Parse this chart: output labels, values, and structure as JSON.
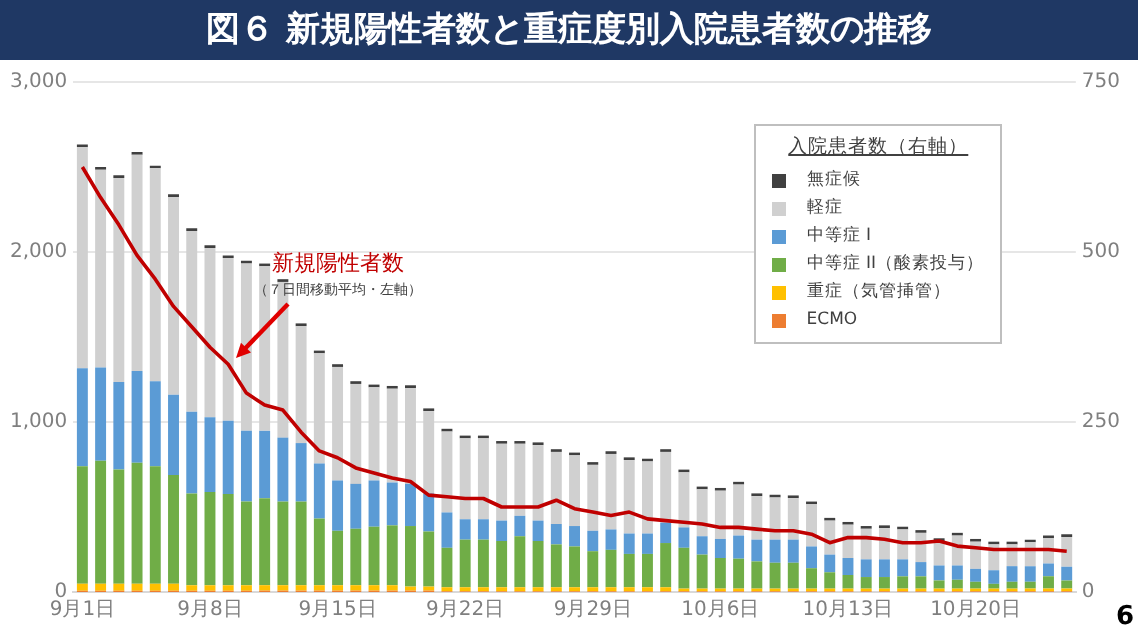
{
  "chart_data": {
    "type": "bar",
    "title": "図６ 新規陽性者数と重症度別入院患者数の推移",
    "categories": [
      "9月1日",
      null,
      null,
      null,
      null,
      null,
      null,
      "9月8日",
      null,
      null,
      null,
      null,
      null,
      null,
      "9月15日",
      null,
      null,
      null,
      null,
      null,
      null,
      "9月22日",
      null,
      null,
      null,
      null,
      null,
      null,
      "9月29日",
      null,
      null,
      null,
      null,
      null,
      null,
      "10月6日",
      null,
      null,
      null,
      null,
      null,
      null,
      "10月13日",
      null,
      null,
      null,
      null,
      null,
      null,
      "10月20日",
      null,
      null,
      null,
      null,
      null
    ],
    "stacked": true,
    "legend": "top right",
    "legend_title": "入院患者数（右軸）",
    "grid": "y",
    "ylim": [
      0,
      3000
    ],
    "yticks": [
      0,
      {
        "value": 1000,
        "label": "1,000"
      },
      {
        "value": 2000,
        "label": "2,000"
      },
      {
        "value": 3000,
        "label": "3,000"
      }
    ],
    "y2lim": [
      0,
      750
    ],
    "y2ticks": [
      0,
      250,
      500,
      750
    ],
    "annotations": [
      "（７日間移動平均・左軸）",
      "6"
    ],
    "series": [
      {
        "name": "ECMO",
        "color": "#ed7d31",
        "axis": "y2",
        "values": [
          2,
          2,
          2,
          2,
          2,
          2,
          2,
          2,
          2,
          2,
          2,
          2,
          2,
          2,
          2,
          2,
          2,
          2,
          2,
          2,
          1,
          1,
          1,
          1,
          1,
          1,
          1,
          1,
          1,
          1,
          1,
          1,
          1,
          1,
          1,
          1,
          1,
          1,
          1,
          1,
          1,
          1,
          1,
          1,
          1,
          1,
          1,
          1,
          1,
          1,
          1,
          1,
          1,
          1,
          1
        ]
      },
      {
        "name": "重症（気管挿管）",
        "color": "#ffc000",
        "axis": "y2",
        "values": [
          10,
          10,
          10,
          10,
          10,
          10,
          8,
          8,
          8,
          8,
          8,
          8,
          8,
          8,
          8,
          8,
          8,
          8,
          6,
          6,
          6,
          6,
          6,
          6,
          6,
          6,
          6,
          6,
          6,
          6,
          6,
          6,
          6,
          4,
          4,
          4,
          4,
          4,
          4,
          4,
          4,
          4,
          4,
          4,
          4,
          4,
          4,
          4,
          4,
          4,
          4,
          4,
          4,
          4,
          4
        ]
      },
      {
        "name": "中等症 II（酸素投与）",
        "color": "#70ad47",
        "axis": "y2",
        "values": [
          173,
          181,
          168,
          178,
          173,
          160,
          135,
          137,
          134,
          123,
          128,
          123,
          123,
          98,
          80,
          83,
          86,
          88,
          89,
          81,
          58,
          70,
          70,
          68,
          75,
          68,
          63,
          60,
          53,
          55,
          49,
          49,
          65,
          60,
          50,
          45,
          44,
          40,
          38,
          38,
          30,
          24,
          20,
          17,
          17,
          18,
          18,
          12,
          13,
          10,
          7,
          10,
          10,
          18,
          12
        ]
      },
      {
        "name": "中等症 I",
        "color": "#5b9bd5",
        "axis": "y2",
        "values": [
          144,
          137,
          129,
          135,
          125,
          118,
          120,
          110,
          108,
          104,
          99,
          94,
          86,
          81,
          74,
          66,
          68,
          63,
          62,
          56,
          52,
          30,
          30,
          30,
          30,
          30,
          30,
          30,
          30,
          30,
          30,
          30,
          30,
          30,
          27,
          28,
          34,
          32,
          34,
          34,
          32,
          26,
          25,
          26,
          26,
          25,
          21,
          22,
          21,
          19,
          20,
          23,
          23,
          19,
          20
        ]
      },
      {
        "name": "軽症",
        "color": "#d0d0d0",
        "axis": "y2",
        "values": [
          325,
          291,
          300,
          318,
          313,
          291,
          266,
          249,
          239,
          246,
          242,
          229,
          172,
          162,
          167,
          147,
          137,
          138,
          141,
          121,
          119,
          119,
          119,
          113,
          106,
          111,
          106,
          104,
          97,
          111,
          108,
          106,
          104,
          81,
          69,
          71,
          75,
          64,
          62,
          61,
          62,
          50,
          49,
          45,
          46,
          44,
          43,
          36,
          44,
          40,
          38,
          32,
          35,
          37,
          44
        ]
      },
      {
        "name": "無症候",
        "color": "#404040",
        "axis": "y2",
        "values": [
          4,
          4,
          4,
          4,
          4,
          4,
          4,
          4,
          4,
          4,
          4,
          4,
          4,
          4,
          4,
          4,
          4,
          4,
          4,
          4,
          4,
          4,
          4,
          4,
          4,
          4,
          4,
          4,
          4,
          4,
          4,
          4,
          4,
          4,
          4,
          4,
          4,
          4,
          4,
          4,
          4,
          4,
          4,
          4,
          4,
          4,
          4,
          4,
          4,
          4,
          4,
          4,
          4,
          4,
          4
        ]
      },
      {
        "name": "新規陽性者数",
        "type": "line",
        "color": "#c00000",
        "values": [
          2500,
          2320,
          2160,
          1980,
          1840,
          1680,
          1560,
          1440,
          1340,
          1170,
          1100,
          1070,
          940,
          830,
          790,
          730,
          700,
          670,
          650,
          570,
          560,
          550,
          550,
          500,
          500,
          500,
          540,
          490,
          470,
          450,
          470,
          430,
          420,
          410,
          400,
          380,
          380,
          370,
          360,
          360,
          340,
          290,
          320,
          320,
          310,
          290,
          290,
          300,
          270,
          260,
          250,
          250,
          250,
          250,
          240
        ]
      }
    ]
  }
}
